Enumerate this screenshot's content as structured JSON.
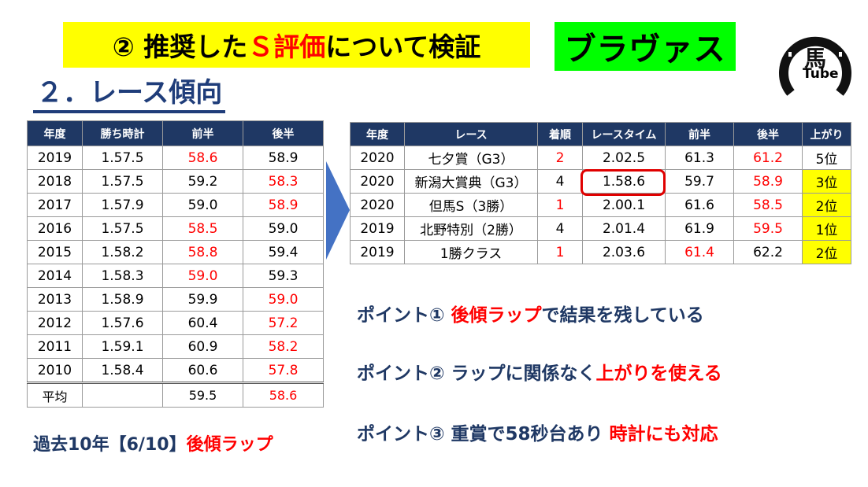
{
  "title": {
    "prefix": "② 推奨した",
    "highlight": "Ｓ評価",
    "suffix": "について検証"
  },
  "horse_name": "ブラヴァス",
  "logo": {
    "text": "Tube",
    "glyph": "馬"
  },
  "section_heading": "２．レース傾向",
  "left_table": {
    "headers": [
      "年度",
      "勝ち時計",
      "前半",
      "後半"
    ],
    "rows": [
      {
        "year": "2019",
        "time": "1.57.5",
        "first": "58.6",
        "second": "58.9",
        "red": "first"
      },
      {
        "year": "2018",
        "time": "1.57.5",
        "first": "59.2",
        "second": "58.3",
        "red": "second"
      },
      {
        "year": "2017",
        "time": "1.57.9",
        "first": "59.0",
        "second": "58.9",
        "red": "second"
      },
      {
        "year": "2016",
        "time": "1.57.5",
        "first": "58.5",
        "second": "59.0",
        "red": "first"
      },
      {
        "year": "2015",
        "time": "1.58.2",
        "first": "58.8",
        "second": "59.4",
        "red": "first"
      },
      {
        "year": "2014",
        "time": "1.58.3",
        "first": "59.0",
        "second": "59.3",
        "red": "first"
      },
      {
        "year": "2013",
        "time": "1.58.9",
        "first": "59.9",
        "second": "59.0",
        "red": "second"
      },
      {
        "year": "2012",
        "time": "1.57.6",
        "first": "60.4",
        "second": "57.2",
        "red": "second"
      },
      {
        "year": "2011",
        "time": "1.59.1",
        "first": "60.9",
        "second": "58.2",
        "red": "second"
      },
      {
        "year": "2010",
        "time": "1.58.4",
        "first": "60.6",
        "second": "57.8",
        "red": "second"
      }
    ],
    "average": {
      "label": "平均",
      "time": "",
      "first": "59.5",
      "second": "58.6"
    }
  },
  "right_table": {
    "headers": [
      "年度",
      "レース",
      "着順",
      "レースタイム",
      "前半",
      "後半",
      "上がり"
    ],
    "rows": [
      {
        "year": "2020",
        "race": "七夕賞（G3）",
        "place": "2",
        "time": "2.02.5",
        "first": "61.3",
        "second": "61.2",
        "agari": "5位",
        "place_red": true,
        "red": "second",
        "yellow": false
      },
      {
        "year": "2020",
        "race": "新潟大賞典（G3）",
        "place": "4",
        "time": "1.58.6",
        "first": "59.7",
        "second": "58.9",
        "agari": "3位",
        "place_red": false,
        "red": "second",
        "yellow": true
      },
      {
        "year": "2020",
        "race": "但馬S（3勝）",
        "place": "1",
        "time": "2.00.1",
        "first": "61.6",
        "second": "58.5",
        "agari": "2位",
        "place_red": true,
        "red": "second",
        "yellow": true
      },
      {
        "year": "2019",
        "race": "北野特別（2勝）",
        "place": "4",
        "time": "2.01.4",
        "first": "61.9",
        "second": "59.5",
        "agari": "1位",
        "place_red": false,
        "red": "second",
        "yellow": true
      },
      {
        "year": "2019",
        "race": "1勝クラス",
        "place": "1",
        "time": "2.03.6",
        "first": "61.4",
        "second": "62.2",
        "agari": "2位",
        "place_red": true,
        "red": "first",
        "yellow": true
      }
    ]
  },
  "points": [
    {
      "prefix": "ポイント①  ",
      "highlight": "後傾ラップ",
      "suffix": "で結果を残している"
    },
    {
      "prefix": "ポイント②  ラップに関係なく",
      "highlight": "上がりを使える",
      "suffix": ""
    },
    {
      "prefix": "ポイント③  重賞で58秒台あり ",
      "highlight": "時計にも対応",
      "suffix": ""
    }
  ],
  "footer": {
    "prefix": "過去10年【6/10】",
    "highlight": "後傾ラップ"
  },
  "colors": {
    "accent_red": "#ff0000",
    "title_yellow": "#ffff00",
    "horse_green": "#00ff00",
    "header_navy": "#1f3864",
    "arrow_blue": "#4472c4"
  }
}
